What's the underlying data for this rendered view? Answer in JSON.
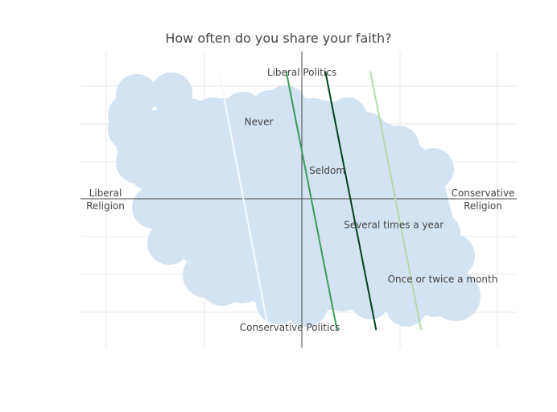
{
  "chart_data": {
    "type": "line",
    "title": "How often do you share your faith?",
    "xlabel": "",
    "ylabel": "",
    "xlim": [
      -5,
      5
    ],
    "ylim": [
      -5,
      5
    ],
    "grid": true,
    "axis_labels": {
      "left": [
        "Liberal",
        "Religion"
      ],
      "right": [
        "Conservative",
        "Religion"
      ],
      "top": "Liberal Politics",
      "bottom": "Conservative Politics"
    },
    "cloud_color": "#d4e3f1",
    "series": [
      {
        "name": "Never",
        "color": "#f5f8fc",
        "x": [
          -2.1,
          -0.85
        ],
        "y": [
          3.3,
          -3.5
        ],
        "label_pos": [
          -1.1,
          2.05
        ]
      },
      {
        "name": "Seldom",
        "color": "#3a9d5a",
        "x": [
          -0.4,
          0.9
        ],
        "y": [
          3.4,
          -3.5
        ],
        "label_pos": [
          0.65,
          0.75
        ]
      },
      {
        "name": "Several times a year",
        "color": "#00441b",
        "x": [
          0.6,
          1.9
        ],
        "y": [
          3.4,
          -3.5
        ],
        "label_pos": [
          2.35,
          -0.7
        ]
      },
      {
        "name": "Once or twice a month",
        "color": "#b1dca9",
        "x": [
          1.75,
          3.05
        ],
        "y": [
          3.4,
          -3.5
        ],
        "label_pos": [
          3.6,
          -2.15
        ]
      }
    ]
  }
}
